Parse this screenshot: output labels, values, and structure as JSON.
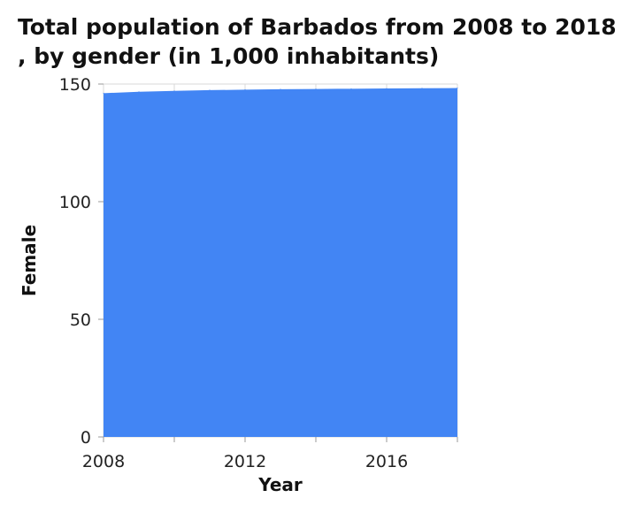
{
  "chart_data": {
    "type": "area",
    "title": "Total population of Barbados from 2008 to 2018 , by gender (in 1,000 inhabitants)",
    "xlabel": "Year",
    "ylabel": "Female",
    "x": [
      2008,
      2009,
      2010,
      2011,
      2012,
      2013,
      2014,
      2015,
      2016,
      2017,
      2018
    ],
    "series": [
      {
        "name": "Female",
        "values": [
          146.1,
          146.7,
          147.1,
          147.4,
          147.6,
          147.8,
          147.9,
          148.0,
          148.1,
          148.2,
          148.3
        ]
      }
    ],
    "xlim": [
      2008,
      2018
    ],
    "ylim": [
      0,
      150
    ],
    "xticks": [
      2008,
      2012,
      2016
    ],
    "yticks": [
      0,
      50,
      100,
      150
    ],
    "xtick_labels": [
      "2008",
      "2012",
      "2016"
    ],
    "ytick_labels": [
      "0",
      "50",
      "100",
      "150"
    ],
    "grid": true,
    "colors": {
      "fill": "#4285f4",
      "grid": "#d9d9d9"
    }
  }
}
